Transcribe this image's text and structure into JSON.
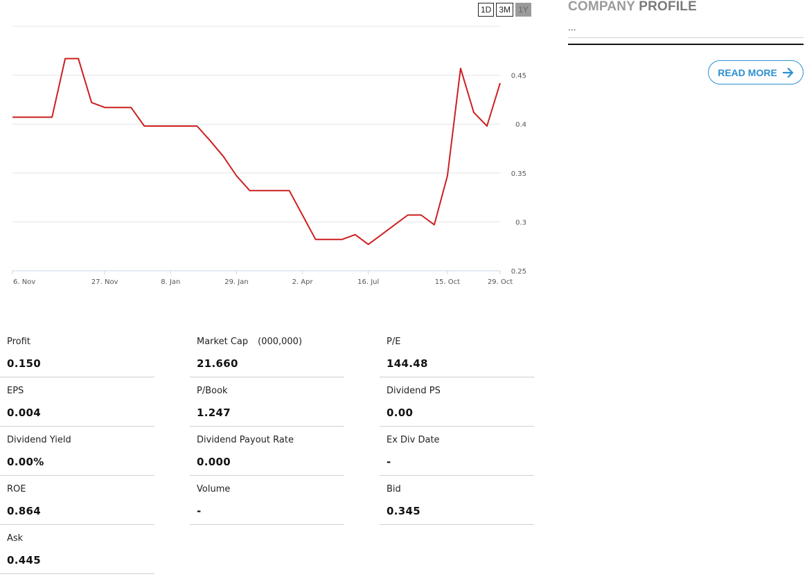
{
  "range_buttons": [
    {
      "label": "1D",
      "active": false
    },
    {
      "label": "3M",
      "active": false
    },
    {
      "label": "1Y",
      "active": true
    }
  ],
  "chart_data": {
    "type": "line",
    "title": "",
    "xlabel": "",
    "ylabel": "",
    "ylim": [
      0.25,
      0.5
    ],
    "y_ticks": [
      "0.25",
      "0.3",
      "0.35",
      "0.4",
      "0.45"
    ],
    "x_ticks": [
      "6. Nov",
      "27. Nov",
      "8. Jan",
      "29. Jan",
      "2. Apr",
      "16. Jul",
      "15. Oct",
      "29. Oct"
    ],
    "series_color": "#cc1f1f",
    "grid": true,
    "legend": "none",
    "points": [
      {
        "x": "6. Nov",
        "y": 0.407
      },
      {
        "y": 0.407
      },
      {
        "y": 0.407
      },
      {
        "y": 0.407
      },
      {
        "y": 0.467
      },
      {
        "y": 0.467
      },
      {
        "y": 0.422
      },
      {
        "x": "27. Nov",
        "y": 0.417
      },
      {
        "y": 0.417
      },
      {
        "y": 0.417
      },
      {
        "y": 0.398
      },
      {
        "y": 0.398
      },
      {
        "x": "8. Jan",
        "y": 0.398
      },
      {
        "y": 0.398
      },
      {
        "y": 0.398
      },
      {
        "y": 0.383
      },
      {
        "y": 0.367
      },
      {
        "x": "29. Jan",
        "y": 0.347
      },
      {
        "y": 0.332
      },
      {
        "y": 0.332
      },
      {
        "y": 0.332
      },
      {
        "y": 0.332
      },
      {
        "x": "2. Apr",
        "y": 0.307
      },
      {
        "y": 0.282
      },
      {
        "y": 0.282
      },
      {
        "y": 0.282
      },
      {
        "y": 0.287
      },
      {
        "x": "16. Jul",
        "y": 0.277
      },
      {
        "y": 0.287
      },
      {
        "y": 0.297
      },
      {
        "y": 0.307
      },
      {
        "y": 0.307
      },
      {
        "y": 0.297
      },
      {
        "x": "15. Oct",
        "y": 0.347
      },
      {
        "y": 0.457
      },
      {
        "y": 0.412
      },
      {
        "y": 0.398
      },
      {
        "x": "29. Oct",
        "y": 0.442
      }
    ]
  },
  "profile": {
    "title_light": "COMPANY",
    "title_bold": "PROFILE",
    "text": "...",
    "read_more": "READ MORE"
  },
  "stats": [
    {
      "label": "Profit",
      "value": "0.150"
    },
    {
      "label": "Market Cap",
      "unit": "(000,000)",
      "value": "21.660"
    },
    {
      "label": "P/E",
      "value": "144.48"
    },
    {
      "label": "EPS",
      "value": "0.004"
    },
    {
      "label": "P/Book",
      "value": "1.247"
    },
    {
      "label": "Dividend PS",
      "value": "0.00"
    },
    {
      "label": "Dividend Yield",
      "value": "0.00%"
    },
    {
      "label": "Dividend Payout Rate",
      "value": "0.000"
    },
    {
      "label": "Ex Div Date",
      "value": "-"
    },
    {
      "label": "ROE",
      "value": "0.864"
    },
    {
      "label": "Volume",
      "value": "-"
    },
    {
      "label": "Bid",
      "value": "0.345"
    },
    {
      "label": "Ask",
      "value": "0.445"
    }
  ]
}
